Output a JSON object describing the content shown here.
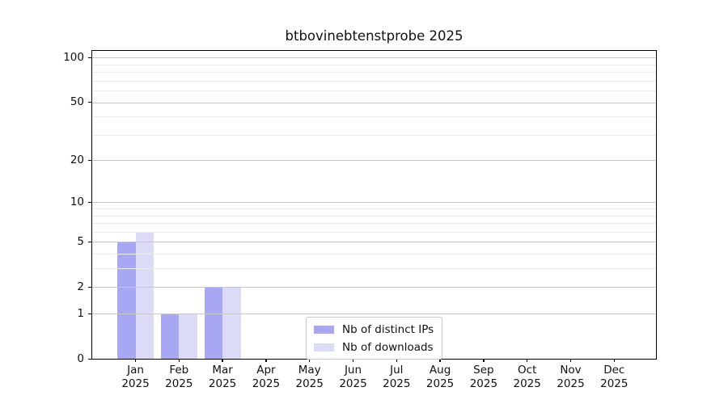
{
  "chart_data": {
    "type": "bar",
    "title": "btbovinebtenstprobe 2025",
    "categories": [
      "Jan 2025",
      "Feb 2025",
      "Mar 2025",
      "Apr 2025",
      "May 2025",
      "Jun 2025",
      "Jul 2025",
      "Aug 2025",
      "Sep 2025",
      "Oct 2025",
      "Nov 2025",
      "Dec 2025"
    ],
    "series": [
      {
        "name": "Nb of distinct IPs",
        "color": "#a7a7f3",
        "values": [
          5,
          1,
          2,
          0,
          0,
          0,
          0,
          0,
          0,
          0,
          0,
          0
        ]
      },
      {
        "name": "Nb of downloads",
        "color": "#dbdbf8",
        "values": [
          6,
          1,
          2,
          0,
          0,
          0,
          0,
          0,
          0,
          0,
          0,
          0
        ]
      }
    ],
    "xlabel": "",
    "ylabel": "",
    "yscale": "log1p",
    "yticks": [
      0,
      1,
      2,
      5,
      10,
      20,
      50,
      100
    ],
    "minor_gridlines": [
      3,
      4,
      6,
      7,
      8,
      9,
      30,
      40,
      60,
      70,
      80,
      90
    ],
    "ylim": [
      0,
      110
    ],
    "grid": true,
    "legend_position": "lower center"
  },
  "colors": {
    "axis": "#000000",
    "grid_major": "#c7c7c7",
    "grid_minor": "#ececec",
    "legend_border": "#c9c9c9",
    "background": "#ffffff"
  }
}
